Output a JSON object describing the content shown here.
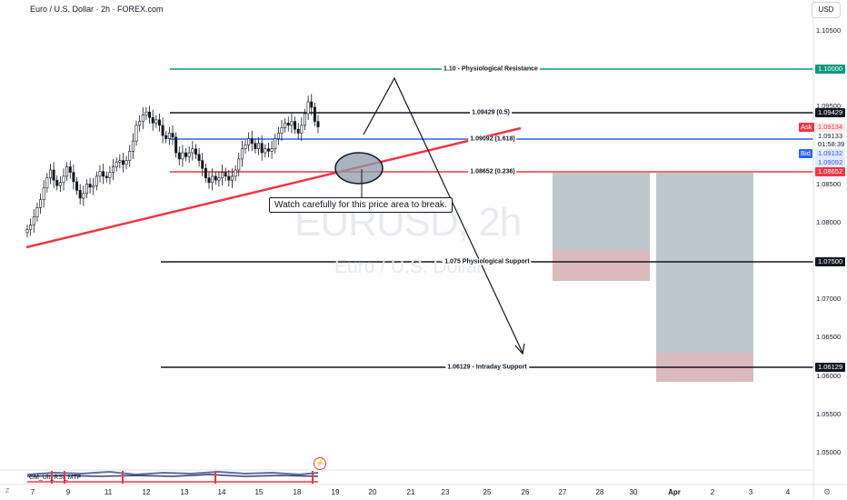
{
  "header": {
    "title": "Euro / U.S. Dollar · 2h · FOREX.com",
    "currency_button": "USD"
  },
  "watermark": {
    "symbol": "EURUSD, 2h",
    "name": "Euro / U.S. Dollar"
  },
  "price_axis": {
    "labels": [
      "1.10500",
      "1.09500",
      "1.08500",
      "1.08000",
      "1.07000",
      "1.06500",
      "1.06000",
      "1.05500",
      "1.05000"
    ],
    "tags": {
      "resistance": "1.10000",
      "fib_05": "1.09429",
      "ask_label": "Ask",
      "ask": "1.09134",
      "current": "1.09133",
      "countdown": "01:58:39",
      "bid_label": "Bid",
      "bid": "1.09132",
      "fib_1618": "1.09092",
      "fib_0236": "1.08652",
      "support": "1.07500",
      "intraday": "1.06129"
    }
  },
  "time_axis": {
    "labels": [
      "7",
      "9",
      "11",
      "12",
      "13",
      "14",
      "15",
      "18",
      "19",
      "20",
      "21",
      "23",
      "25",
      "26",
      "27",
      "28",
      "30",
      "Apr",
      "2",
      "3",
      "4"
    ]
  },
  "levels": {
    "resistance": "1.10 - Physiological Resistance",
    "fib_05": "1.09429 (0.5)",
    "fib_1618": "1.09092 (1.618)",
    "fib_0236": "1.08652 (0.236)",
    "support": "1.075 Physiological Support",
    "intraday": "1.06129 - Intraday Support"
  },
  "annotation": "Watch carefully for this price area to break.",
  "indicator": {
    "label": "CM_Ult_RSI_MTF"
  },
  "misc": {
    "z_label": "Z",
    "bolt_icon": "⚡",
    "gear_icon": "⚙"
  },
  "colors": {
    "resistance": "#089981",
    "fib_05": "#131722",
    "fib_1618": "#2962ff",
    "fib_0236": "#f23645",
    "trendline": "#f23645",
    "candle": "#131722"
  },
  "chart_data": {
    "type": "candlestick",
    "price_range": [
      1.0475,
      1.1075
    ],
    "closes": [
      1.0782,
      1.0788,
      1.0798,
      1.081,
      1.082,
      1.0835,
      1.0848,
      1.0858,
      1.0845,
      1.0838,
      1.0842,
      1.085,
      1.0862,
      1.0855,
      1.0843,
      1.0832,
      1.0822,
      1.0828,
      1.084,
      1.0836,
      1.0838,
      1.085,
      1.0856,
      1.085,
      1.0848,
      1.0855,
      1.0862,
      1.0868,
      1.087,
      1.0865,
      1.087,
      1.0882,
      1.0895,
      1.0915,
      1.092,
      1.0928,
      1.0932,
      1.0925,
      1.0918,
      1.0922,
      1.0915,
      1.0902,
      1.0898,
      1.0905,
      1.09,
      1.088,
      1.0872,
      1.088,
      1.0875,
      1.088,
      1.0885,
      1.0878,
      1.087,
      1.086,
      1.0848,
      1.0842,
      1.085,
      1.0845,
      1.0848,
      1.0855,
      1.085,
      1.0845,
      1.085,
      1.0858,
      1.0872,
      1.0885,
      1.089,
      1.0898,
      1.0892,
      1.0885,
      1.0892,
      1.088,
      1.0885,
      1.0882,
      1.0885,
      1.0898,
      1.0905,
      1.0912,
      1.0918,
      1.0915,
      1.092,
      1.091,
      1.0905,
      1.0915,
      1.093,
      1.0945,
      1.0938,
      1.092,
      1.0913
    ]
  }
}
